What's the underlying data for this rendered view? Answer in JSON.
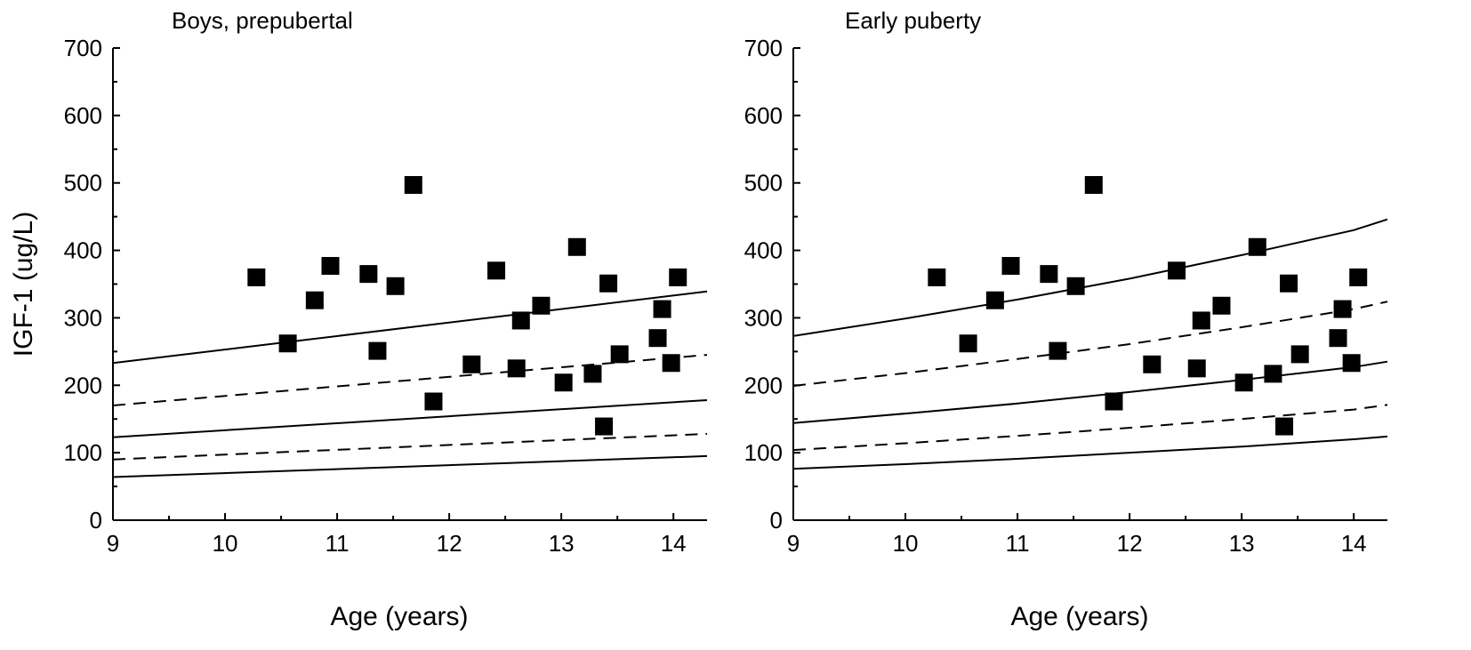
{
  "chart_data": [
    {
      "type": "scatter",
      "title": "Boys, prepubertal",
      "xlabel": "Age (years)",
      "ylabel": "IGF-1 (ug/L)",
      "xlim": [
        9,
        14.3
      ],
      "ylim": [
        0,
        700
      ],
      "xticks": [
        9,
        10,
        11,
        12,
        13,
        14
      ],
      "yticks": [
        0,
        100,
        200,
        300,
        400,
        500,
        600,
        700
      ],
      "points": [
        {
          "x": 10.28,
          "y": 360
        },
        {
          "x": 10.56,
          "y": 262
        },
        {
          "x": 10.8,
          "y": 326
        },
        {
          "x": 10.94,
          "y": 377
        },
        {
          "x": 11.28,
          "y": 365
        },
        {
          "x": 11.36,
          "y": 251
        },
        {
          "x": 11.52,
          "y": 347
        },
        {
          "x": 11.68,
          "y": 497
        },
        {
          "x": 11.86,
          "y": 176
        },
        {
          "x": 12.2,
          "y": 231
        },
        {
          "x": 12.42,
          "y": 370
        },
        {
          "x": 12.6,
          "y": 225
        },
        {
          "x": 12.64,
          "y": 296
        },
        {
          "x": 12.82,
          "y": 318
        },
        {
          "x": 13.02,
          "y": 204
        },
        {
          "x": 13.14,
          "y": 405
        },
        {
          "x": 13.28,
          "y": 217
        },
        {
          "x": 13.38,
          "y": 139
        },
        {
          "x": 13.42,
          "y": 351
        },
        {
          "x": 13.52,
          "y": 246
        },
        {
          "x": 13.86,
          "y": 270
        },
        {
          "x": 13.9,
          "y": 313
        },
        {
          "x": 13.98,
          "y": 233
        },
        {
          "x": 14.04,
          "y": 360
        }
      ],
      "series": [
        {
          "name": "upper solid",
          "style": "solid",
          "x": [
            9,
            14.3
          ],
          "y": [
            233,
            339
          ]
        },
        {
          "name": "upper dashed",
          "style": "dashed",
          "x": [
            9,
            14.3
          ],
          "y": [
            170,
            245
          ]
        },
        {
          "name": "middle solid",
          "style": "solid",
          "x": [
            9,
            14.3
          ],
          "y": [
            123,
            178
          ]
        },
        {
          "name": "lower dashed",
          "style": "dashed",
          "x": [
            9,
            14.3
          ],
          "y": [
            90,
            128
          ]
        },
        {
          "name": "lower solid",
          "style": "solid",
          "x": [
            9,
            14.3
          ],
          "y": [
            64,
            95
          ]
        }
      ]
    },
    {
      "type": "scatter",
      "title": "Early puberty",
      "xlabel": "Age (years)",
      "ylabel": "",
      "xlim": [
        9,
        14.3
      ],
      "ylim": [
        0,
        700
      ],
      "xticks": [
        9,
        10,
        11,
        12,
        13,
        14
      ],
      "yticks": [
        0,
        100,
        200,
        300,
        400,
        500,
        600,
        700
      ],
      "points": [
        {
          "x": 10.28,
          "y": 360
        },
        {
          "x": 10.56,
          "y": 262
        },
        {
          "x": 10.8,
          "y": 326
        },
        {
          "x": 10.94,
          "y": 377
        },
        {
          "x": 11.28,
          "y": 365
        },
        {
          "x": 11.36,
          "y": 251
        },
        {
          "x": 11.52,
          "y": 347
        },
        {
          "x": 11.68,
          "y": 497
        },
        {
          "x": 11.86,
          "y": 176
        },
        {
          "x": 12.2,
          "y": 231
        },
        {
          "x": 12.42,
          "y": 370
        },
        {
          "x": 12.6,
          "y": 225
        },
        {
          "x": 12.64,
          "y": 296
        },
        {
          "x": 12.82,
          "y": 318
        },
        {
          "x": 13.02,
          "y": 204
        },
        {
          "x": 13.14,
          "y": 405
        },
        {
          "x": 13.28,
          "y": 217
        },
        {
          "x": 13.38,
          "y": 139
        },
        {
          "x": 13.42,
          "y": 351
        },
        {
          "x": 13.52,
          "y": 246
        },
        {
          "x": 13.86,
          "y": 270
        },
        {
          "x": 13.9,
          "y": 313
        },
        {
          "x": 13.98,
          "y": 233
        },
        {
          "x": 14.04,
          "y": 360
        }
      ],
      "series": [
        {
          "name": "upper solid",
          "style": "solid",
          "x": [
            9,
            10,
            11,
            12,
            13,
            14,
            14.3
          ],
          "y": [
            273,
            299,
            327,
            358,
            393,
            430,
            446
          ]
        },
        {
          "name": "upper dashed",
          "style": "dashed",
          "x": [
            9,
            10,
            11,
            12,
            13,
            14,
            14.3
          ],
          "y": [
            199,
            218,
            239,
            261,
            286,
            313,
            324
          ]
        },
        {
          "name": "middle solid",
          "style": "solid",
          "x": [
            9,
            10,
            11,
            12,
            13,
            14,
            14.3
          ],
          "y": [
            144,
            158,
            173,
            190,
            208,
            227,
            235
          ]
        },
        {
          "name": "lower dashed",
          "style": "dashed",
          "x": [
            9,
            10,
            11,
            12,
            13,
            14,
            14.3
          ],
          "y": [
            104,
            114,
            125,
            137,
            150,
            164,
            171
          ]
        },
        {
          "name": "lower solid",
          "style": "solid",
          "x": [
            9,
            10,
            11,
            12,
            13,
            14,
            14.3
          ],
          "y": [
            76,
            83,
            91,
            100,
            109,
            120,
            124
          ]
        }
      ]
    }
  ]
}
